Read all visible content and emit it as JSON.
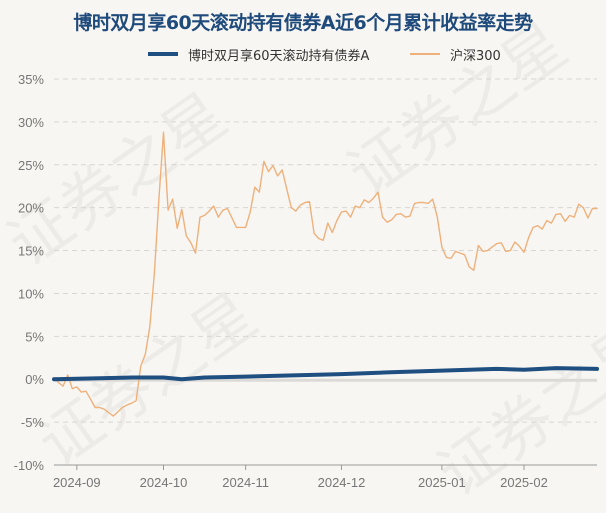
{
  "title": "博时双月享60天滚动持有债券A近6个月累计收益率走势",
  "watermark": "证券之星",
  "chart_data": {
    "type": "line",
    "title": "博时双月享60天滚动持有债券A近6个月累计收益率走势",
    "xlabel": "",
    "ylabel": "",
    "ylim": [
      -10,
      35
    ],
    "y_ticks": [
      "35%",
      "30%",
      "25%",
      "20%",
      "15%",
      "10%",
      "5%",
      "0%",
      "-5%",
      "-10%"
    ],
    "y_tick_values": [
      35,
      30,
      25,
      20,
      15,
      10,
      5,
      0,
      -5,
      -10
    ],
    "x_ticks": [
      "2024-09",
      "2024-10",
      "2024-11",
      "2024-12",
      "2025-01",
      "2025-02"
    ],
    "x_range": [
      "2024-08-26",
      "2025-02-27"
    ],
    "grid": "horizontal dashed",
    "legend": "top",
    "series": [
      {
        "name": "博时双月享60天滚动持有债券A",
        "color": "#1f4e80",
        "points": [
          [
            "2024-08-26",
            0.0
          ],
          [
            "2024-09-20",
            0.2
          ],
          [
            "2024-10-08",
            0.2
          ],
          [
            "2024-10-14",
            0.0
          ],
          [
            "2024-10-21",
            0.2
          ],
          [
            "2024-11-01",
            0.3
          ],
          [
            "2024-12-02",
            0.6
          ],
          [
            "2024-12-16",
            0.8
          ],
          [
            "2025-01-02",
            1.0
          ],
          [
            "2025-01-20",
            1.2
          ],
          [
            "2025-02-05",
            1.1
          ],
          [
            "2025-02-14",
            1.3
          ],
          [
            "2025-02-27",
            1.2
          ]
        ]
      },
      {
        "name": "沪深300",
        "color": "#eeb17c",
        "points": [
          [
            "2024-08-26",
            0.2
          ],
          [
            "2024-08-27",
            -0.4
          ],
          [
            "2024-08-28",
            -0.8
          ],
          [
            "2024-08-29",
            0.5
          ],
          [
            "2024-08-30",
            -1.1
          ],
          [
            "2024-09-02",
            -0.9
          ],
          [
            "2024-09-03",
            -1.5
          ],
          [
            "2024-09-04",
            -1.4
          ],
          [
            "2024-09-05",
            -2.3
          ],
          [
            "2024-09-06",
            -3.3
          ],
          [
            "2024-09-09",
            -3.3
          ],
          [
            "2024-09-10",
            -3.5
          ],
          [
            "2024-09-11",
            -3.9
          ],
          [
            "2024-09-12",
            -4.3
          ],
          [
            "2024-09-13",
            -3.8
          ],
          [
            "2024-09-18",
            -3.3
          ],
          [
            "2024-09-19",
            -3.0
          ],
          [
            "2024-09-20",
            -2.8
          ],
          [
            "2024-09-23",
            -2.5
          ],
          [
            "2024-09-24",
            1.5
          ],
          [
            "2024-09-25",
            2.9
          ],
          [
            "2024-09-26",
            6.1
          ],
          [
            "2024-09-27",
            12.4
          ],
          [
            "2024-09-30",
            21.0
          ],
          [
            "2024-10-08",
            28.8
          ],
          [
            "2024-10-09",
            19.7
          ],
          [
            "2024-10-10",
            21.0
          ],
          [
            "2024-10-11",
            17.6
          ],
          [
            "2024-10-14",
            19.8
          ],
          [
            "2024-10-15",
            16.7
          ],
          [
            "2024-10-16",
            15.9
          ],
          [
            "2024-10-17",
            14.7
          ],
          [
            "2024-10-18",
            18.9
          ],
          [
            "2024-10-21",
            19.1
          ],
          [
            "2024-10-22",
            19.6
          ],
          [
            "2024-10-23",
            20.2
          ],
          [
            "2024-10-24",
            18.9
          ],
          [
            "2024-10-25",
            19.7
          ],
          [
            "2024-10-28",
            19.9
          ],
          [
            "2024-10-29",
            18.8
          ],
          [
            "2024-10-30",
            17.7
          ],
          [
            "2024-10-31",
            17.7
          ],
          [
            "2024-11-01",
            17.7
          ],
          [
            "2024-11-04",
            19.5
          ],
          [
            "2024-11-05",
            22.4
          ],
          [
            "2024-11-06",
            21.8
          ],
          [
            "2024-11-07",
            25.4
          ],
          [
            "2024-11-08",
            24.2
          ],
          [
            "2024-11-11",
            24.9
          ],
          [
            "2024-11-12",
            23.7
          ],
          [
            "2024-11-13",
            24.4
          ],
          [
            "2024-11-14",
            22.2
          ],
          [
            "2024-11-15",
            20.0
          ],
          [
            "2024-11-18",
            19.6
          ],
          [
            "2024-11-19",
            20.3
          ],
          [
            "2024-11-20",
            20.6
          ],
          [
            "2024-11-21",
            20.7
          ],
          [
            "2024-11-22",
            17.0
          ],
          [
            "2024-11-25",
            16.4
          ],
          [
            "2024-11-26",
            16.2
          ],
          [
            "2024-11-27",
            18.2
          ],
          [
            "2024-11-28",
            17.1
          ],
          [
            "2024-11-29",
            18.5
          ],
          [
            "2024-12-02",
            19.5
          ],
          [
            "2024-12-03",
            19.6
          ],
          [
            "2024-12-04",
            18.9
          ],
          [
            "2024-12-05",
            20.2
          ],
          [
            "2024-12-06",
            20.0
          ],
          [
            "2024-12-09",
            20.9
          ],
          [
            "2024-12-10",
            20.6
          ],
          [
            "2024-12-11",
            21.1
          ],
          [
            "2024-12-12",
            21.8
          ],
          [
            "2024-12-13",
            18.9
          ],
          [
            "2024-12-16",
            18.3
          ],
          [
            "2024-12-17",
            18.6
          ],
          [
            "2024-12-18",
            19.2
          ],
          [
            "2024-12-19",
            19.3
          ],
          [
            "2024-12-20",
            18.9
          ],
          [
            "2024-12-23",
            19.0
          ],
          [
            "2024-12-24",
            20.5
          ],
          [
            "2024-12-25",
            20.6
          ],
          [
            "2024-12-26",
            20.6
          ],
          [
            "2024-12-27",
            20.5
          ],
          [
            "2024-12-30",
            21.0
          ],
          [
            "2024-12-31",
            18.9
          ],
          [
            "2025-01-02",
            15.4
          ],
          [
            "2025-01-03",
            14.2
          ],
          [
            "2025-01-06",
            14.1
          ],
          [
            "2025-01-07",
            14.9
          ],
          [
            "2025-01-08",
            14.7
          ],
          [
            "2025-01-09",
            14.5
          ],
          [
            "2025-01-10",
            13.1
          ],
          [
            "2025-01-13",
            12.7
          ],
          [
            "2025-01-14",
            15.6
          ],
          [
            "2025-01-15",
            14.9
          ],
          [
            "2025-01-16",
            15.0
          ],
          [
            "2025-01-17",
            15.4
          ],
          [
            "2025-01-20",
            15.8
          ],
          [
            "2025-01-21",
            15.9
          ],
          [
            "2025-01-22",
            14.9
          ],
          [
            "2025-01-23",
            15.0
          ],
          [
            "2025-01-24",
            16.0
          ],
          [
            "2025-01-27",
            15.5
          ],
          [
            "2025-02-05",
            14.8
          ],
          [
            "2025-02-06",
            16.5
          ],
          [
            "2025-02-07",
            17.7
          ],
          [
            "2025-02-10",
            17.9
          ],
          [
            "2025-02-11",
            17.5
          ],
          [
            "2025-02-12",
            18.5
          ],
          [
            "2025-02-13",
            18.2
          ],
          [
            "2025-02-14",
            19.2
          ],
          [
            "2025-02-17",
            19.3
          ],
          [
            "2025-02-18",
            18.4
          ],
          [
            "2025-02-19",
            19.1
          ],
          [
            "2025-02-20",
            18.9
          ],
          [
            "2025-02-21",
            20.4
          ],
          [
            "2025-02-24",
            20.0
          ],
          [
            "2025-02-25",
            18.8
          ],
          [
            "2025-02-26",
            19.9
          ],
          [
            "2025-02-27",
            19.9
          ]
        ]
      }
    ]
  }
}
